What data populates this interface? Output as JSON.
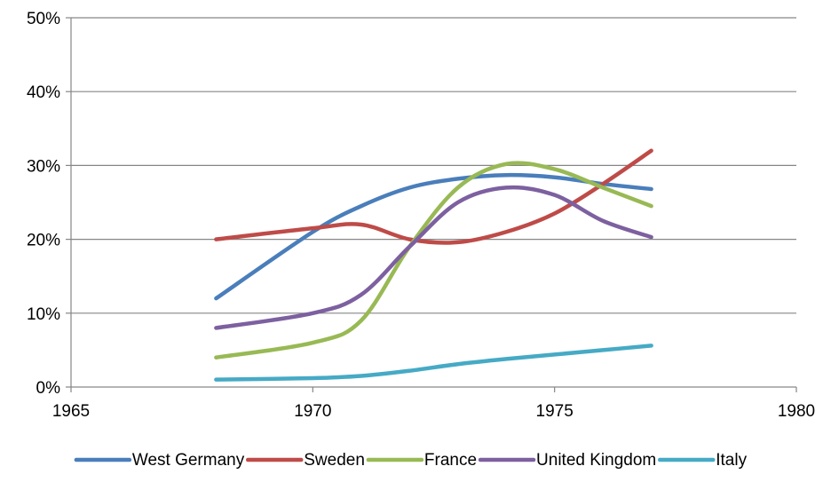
{
  "chart_data": {
    "type": "line",
    "title": "",
    "xlabel": "",
    "ylabel": "",
    "xlim": [
      1965,
      1980
    ],
    "ylim": [
      0,
      0.5
    ],
    "x_ticks": [
      1965,
      1970,
      1975,
      1980
    ],
    "x_tick_labels": [
      "1965",
      "1970",
      "1975",
      "1980"
    ],
    "y_ticks": [
      0,
      0.1,
      0.2,
      0.3,
      0.4,
      0.5
    ],
    "y_tick_labels": [
      "0%",
      "10%",
      "20%",
      "30%",
      "40%",
      "50%"
    ],
    "grid": "horizontal",
    "smooth": true,
    "legend_position": "bottom",
    "series": [
      {
        "name": "West Germany",
        "color": "#4a7ebb",
        "points": [
          [
            1968,
            0.12
          ],
          [
            1970,
            0.21
          ],
          [
            1971,
            0.245
          ],
          [
            1972,
            0.27
          ],
          [
            1973,
            0.282
          ],
          [
            1974,
            0.287
          ],
          [
            1975,
            0.284
          ],
          [
            1976,
            0.275
          ],
          [
            1977,
            0.268
          ]
        ]
      },
      {
        "name": "Sweden",
        "color": "#be4b48",
        "points": [
          [
            1968,
            0.2
          ],
          [
            1970,
            0.215
          ],
          [
            1971,
            0.22
          ],
          [
            1972,
            0.2
          ],
          [
            1973,
            0.196
          ],
          [
            1974,
            0.21
          ],
          [
            1975,
            0.235
          ],
          [
            1976,
            0.275
          ],
          [
            1977,
            0.32
          ]
        ]
      },
      {
        "name": "France",
        "color": "#98b954",
        "points": [
          [
            1968,
            0.04
          ],
          [
            1970,
            0.06
          ],
          [
            1971,
            0.09
          ],
          [
            1972,
            0.19
          ],
          [
            1973,
            0.27
          ],
          [
            1974,
            0.302
          ],
          [
            1975,
            0.295
          ],
          [
            1976,
            0.27
          ],
          [
            1977,
            0.245
          ]
        ]
      },
      {
        "name": "United Kingdom",
        "color": "#7d60a0",
        "points": [
          [
            1968,
            0.08
          ],
          [
            1970,
            0.1
          ],
          [
            1971,
            0.125
          ],
          [
            1972,
            0.19
          ],
          [
            1973,
            0.25
          ],
          [
            1974,
            0.27
          ],
          [
            1975,
            0.26
          ],
          [
            1976,
            0.225
          ],
          [
            1977,
            0.203
          ]
        ]
      },
      {
        "name": "Italy",
        "color": "#46aac5",
        "points": [
          [
            1968,
            0.01
          ],
          [
            1970,
            0.012
          ],
          [
            1971,
            0.015
          ],
          [
            1972,
            0.022
          ],
          [
            1973,
            0.031
          ],
          [
            1974,
            0.038
          ],
          [
            1975,
            0.044
          ],
          [
            1976,
            0.05
          ],
          [
            1977,
            0.056
          ]
        ]
      }
    ]
  }
}
